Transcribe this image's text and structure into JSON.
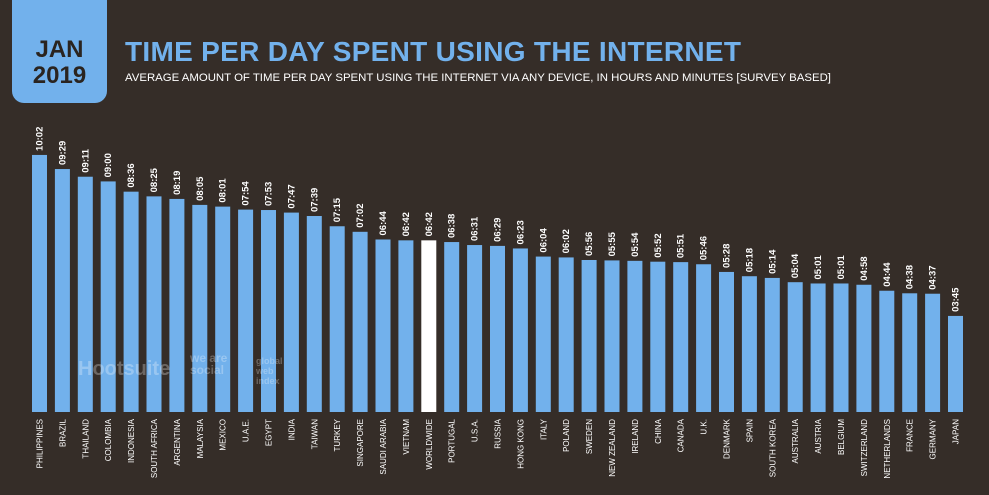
{
  "header": {
    "month": "JAN",
    "year": "2019",
    "title": "TIME PER DAY SPENT USING THE INTERNET",
    "subtitle": "AVERAGE AMOUNT OF TIME PER DAY SPENT USING THE INTERNET VIA ANY DEVICE, IN HOURS AND MINUTES [SURVEY BASED]"
  },
  "watermarks": {
    "hootsuite": "Hootsuite",
    "wearesocial": "we are social",
    "gwi": "global web index"
  },
  "colors": {
    "bar": "#72b1ec",
    "highlight": "#ffffff",
    "background": "#352d28"
  },
  "chart_data": {
    "type": "bar",
    "title": "TIME PER DAY SPENT USING THE INTERNET",
    "xlabel": "",
    "ylabel": "hours:minutes",
    "ylim": [
      0,
      620
    ],
    "unit": "minutes",
    "categories": [
      "PHILIPPINES",
      "BRAZIL",
      "THAILAND",
      "COLOMBIA",
      "INDONESIA",
      "SOUTH AFRICA",
      "ARGENTINA",
      "MALAYSIA",
      "MEXICO",
      "U.A.E.",
      "EGYPT",
      "INDIA",
      "TAIWAN",
      "TURKEY",
      "SINGAPORE",
      "SAUDI ARABIA",
      "VIETNAM",
      "WORLDWIDE",
      "PORTUGAL",
      "U.S.A.",
      "RUSSIA",
      "HONG KONG",
      "ITALY",
      "POLAND",
      "SWEDEN",
      "NEW ZEALAND",
      "IRELAND",
      "CHINA",
      "CANADA",
      "U.K.",
      "DENMARK",
      "SPAIN",
      "SOUTH KOREA",
      "AUSTRALIA",
      "AUSTRIA",
      "BELGIUM",
      "SWITZERLAND",
      "NETHERLANDS",
      "FRANCE",
      "GERMANY",
      "JAPAN"
    ],
    "labels": [
      "10:02",
      "09:29",
      "09:11",
      "09:00",
      "08:36",
      "08:25",
      "08:19",
      "08:05",
      "08:01",
      "07:54",
      "07:53",
      "07:47",
      "07:39",
      "07:15",
      "07:02",
      "06:44",
      "06:42",
      "06:42",
      "06:38",
      "06:31",
      "06:29",
      "06:23",
      "06:04",
      "06:02",
      "05:56",
      "05:55",
      "05:54",
      "05:52",
      "05:51",
      "05:46",
      "05:28",
      "05:18",
      "05:14",
      "05:04",
      "05:01",
      "05:01",
      "04:58",
      "04:44",
      "04:38",
      "04:37",
      "03:45"
    ],
    "highlight": "WORLDWIDE"
  }
}
